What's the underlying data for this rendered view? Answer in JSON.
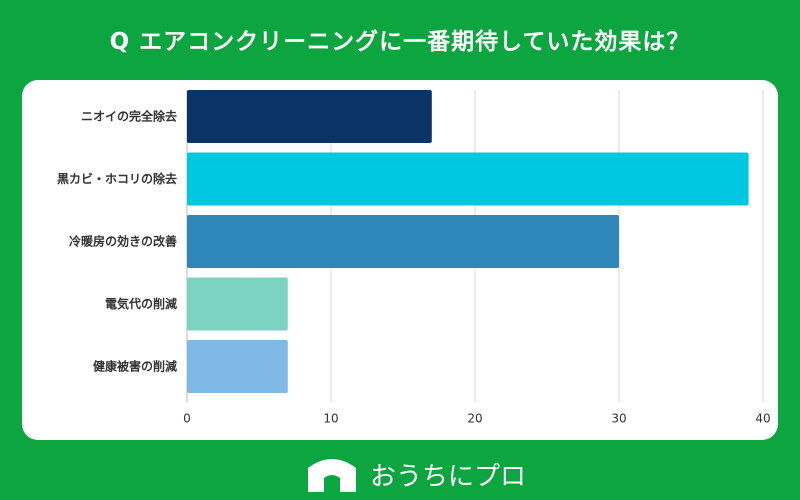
{
  "title": "Q エアコンクリーニングに一番期待していた効果は？",
  "chart_data": {
    "type": "bar",
    "orientation": "horizontal",
    "categories": [
      "ニオイの完全除去",
      "黒カビ・ホコリの除去",
      "冷暖房の効きの改善",
      "電気代の削減",
      "健康被害の削減"
    ],
    "values": [
      17,
      39,
      30,
      7,
      7
    ],
    "colors": [
      "#0b3466",
      "#00c8e0",
      "#2f86b9",
      "#7cd3c2",
      "#7fb9e6"
    ],
    "xlim": [
      0,
      40
    ],
    "xticks": [
      0,
      10,
      20,
      30,
      40
    ],
    "xlabel": "",
    "ylabel": "",
    "grid": true
  },
  "logo": {
    "mark_text": "OUCHI ni PRO",
    "brand_name": "おうちにプロ"
  }
}
